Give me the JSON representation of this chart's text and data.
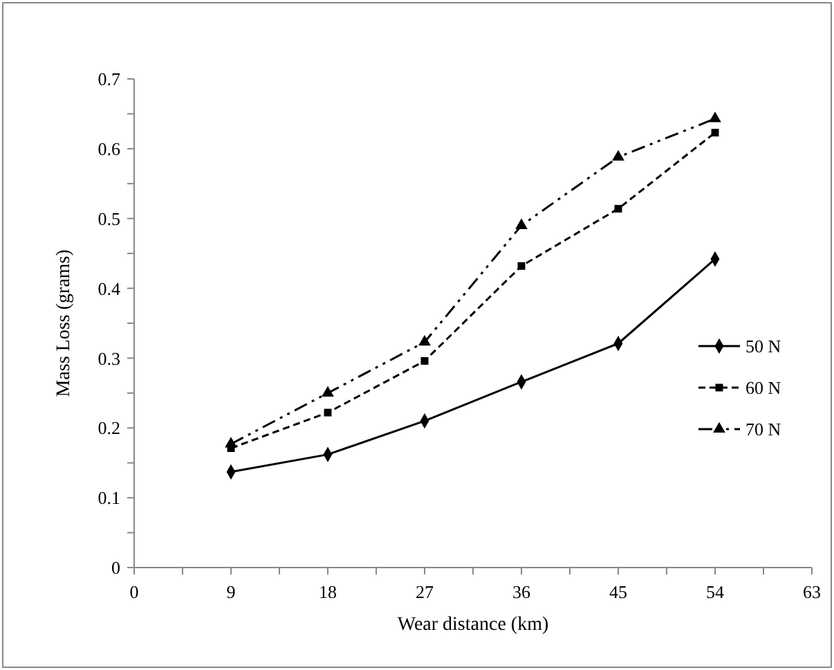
{
  "chart_data": {
    "type": "line",
    "xlabel": "Wear distance (km)",
    "ylabel": "Mass Loss (grams)",
    "x": [
      9,
      18,
      27,
      36,
      45,
      54
    ],
    "xlim": [
      0,
      63
    ],
    "xticks": [
      0,
      {
        "value": 4.5,
        "label": null
      },
      9,
      {
        "value": 13.5,
        "label": null
      },
      18,
      {
        "value": 22.5,
        "label": null
      },
      27,
      {
        "value": 31.5,
        "label": null
      },
      36,
      {
        "value": 40.5,
        "label": null
      },
      45,
      {
        "value": 49.5,
        "label": null
      },
      54,
      {
        "value": 58.5,
        "label": null
      },
      63
    ],
    "ylim": [
      0,
      0.7
    ],
    "yticks": [
      0,
      {
        "value": 0.05,
        "label": null
      },
      0.1,
      {
        "value": 0.15,
        "label": null
      },
      0.2,
      {
        "value": 0.25,
        "label": null
      },
      0.3,
      {
        "value": 0.35,
        "label": null
      },
      0.4,
      {
        "value": 0.45,
        "label": null
      },
      0.5,
      {
        "value": 0.55,
        "label": null
      },
      0.6,
      {
        "value": 0.65,
        "label": null
      },
      0.7
    ],
    "grid": false,
    "legend": "right",
    "series": [
      {
        "name": "50 N",
        "color": "#000000",
        "marker": "diamond",
        "line_style": "solid",
        "values": [
          0.137,
          0.162,
          0.21,
          0.266,
          0.321,
          0.442
        ]
      },
      {
        "name": "60 N",
        "color": "#000000",
        "marker": "square",
        "line_style": "dashed",
        "values": [
          0.171,
          0.222,
          0.296,
          0.432,
          0.514,
          0.623
        ]
      },
      {
        "name": "70 N",
        "color": "#000000",
        "marker": "triangle",
        "line_style": "dashdot",
        "values": [
          0.177,
          0.25,
          0.323,
          0.49,
          0.588,
          0.643
        ]
      }
    ]
  }
}
